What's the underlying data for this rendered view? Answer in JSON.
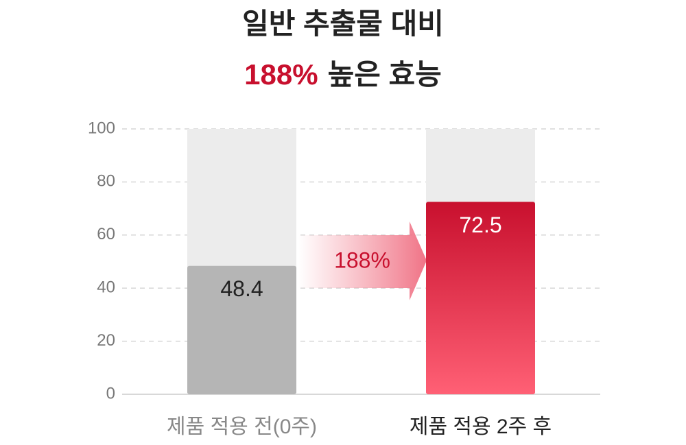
{
  "chart_data": {
    "type": "bar",
    "title": "일반 추출물 대비",
    "subtitle_highlight": "188%",
    "subtitle": "높은 효능",
    "categories": [
      "제품 적용 전(0주)",
      "제품 적용 2주 후"
    ],
    "values": [
      48.4,
      72.5
    ],
    "colors": [
      "#b5b5b5",
      "#c8102e"
    ],
    "value_label_colors": [
      "#222222",
      "#ffffff"
    ],
    "category_label_colors": [
      "#888888",
      "#222222"
    ],
    "annotation": "188%",
    "ylim": [
      0,
      100
    ],
    "yticks": [
      0,
      20,
      40,
      60,
      80,
      100
    ],
    "grid": true
  }
}
